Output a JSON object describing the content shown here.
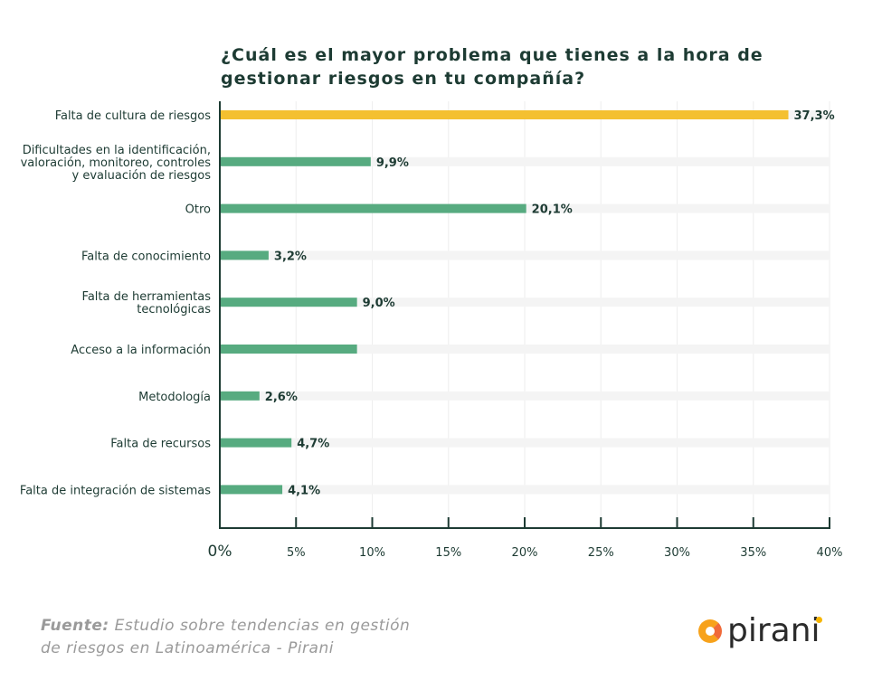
{
  "chart_data": {
    "type": "bar",
    "orientation": "horizontal",
    "title": "¿Cuál es el mayor problema que tienes a la hora de gestionar riesgos en tu compañía?",
    "categories": [
      [
        "Falta de cultura de riesgos"
      ],
      [
        "Dificultades en la identificación,",
        "valoración, monitoreo, controles",
        "y evaluación de riesgos"
      ],
      [
        "Otro"
      ],
      [
        "Falta de conocimiento"
      ],
      [
        "Falta de herramientas",
        "tecnológicas"
      ],
      [
        "Acceso a la información"
      ],
      [
        "Metodología"
      ],
      [
        "Falta de recursos"
      ],
      [
        "Falta de integración de sistemas"
      ]
    ],
    "values": [
      37.3,
      9.9,
      20.1,
      3.2,
      9.0,
      9.0,
      2.6,
      4.7,
      4.1
    ],
    "data_labels": [
      "37,3%",
      "9,9%",
      "20,1%",
      "3,2%",
      "9,0%",
      "",
      "2,6%",
      "4,7%",
      "4,1%"
    ],
    "highlight_index": 0,
    "xlim": [
      0,
      40
    ],
    "xticks": [
      0,
      5,
      10,
      15,
      20,
      25,
      30,
      35,
      40
    ],
    "xtick_labels": [
      "0%",
      "5%",
      "10%",
      "15%",
      "20%",
      "25%",
      "30%",
      "35%",
      "40%"
    ],
    "xlabel": "",
    "ylabel": "",
    "grid": true,
    "colors": {
      "bar": "#57ab80",
      "highlight": "#f4c030",
      "track": "#f4f4f4",
      "text": "#1d3b33",
      "axis": "#1d3b33"
    }
  },
  "source": {
    "label": "Fuente:",
    "text_line1": "Estudio sobre tendencias en gestión",
    "text_line2": "de riesgos en Latinoamérica - Pirani"
  },
  "logo": {
    "text": "pirani"
  }
}
